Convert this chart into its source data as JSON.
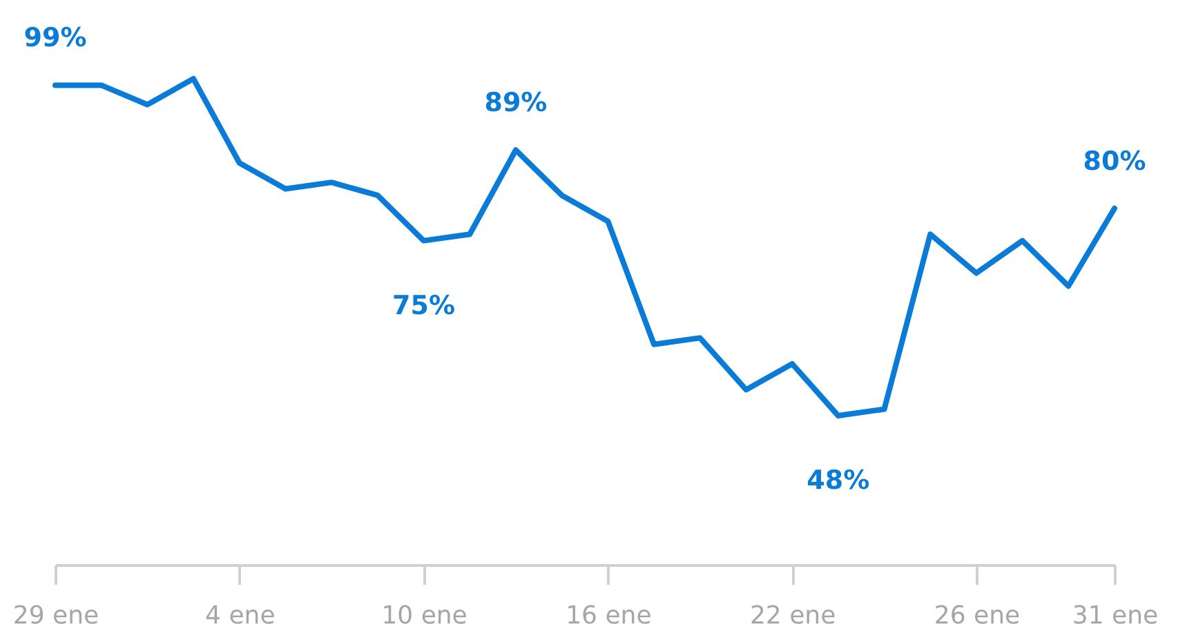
{
  "chart_data": {
    "type": "line",
    "categories": [
      "29 ene",
      null,
      null,
      null,
      "4 ene",
      null,
      null,
      null,
      "10 ene",
      null,
      null,
      null,
      "16 ene",
      null,
      null,
      null,
      "22 ene",
      null,
      null,
      null,
      "26 ene",
      null,
      null,
      "31 ene"
    ],
    "series": [
      {
        "color": "#0a7bd6",
        "values": [
          99,
          99,
          96,
          100,
          87,
          83,
          84,
          82,
          75,
          76,
          89,
          82,
          78,
          59,
          60,
          52,
          56,
          48,
          49,
          76,
          70,
          75,
          68,
          80
        ],
        "value_labels": [
          "99%",
          null,
          null,
          null,
          null,
          null,
          null,
          null,
          "75%",
          null,
          "89%",
          null,
          null,
          null,
          null,
          null,
          null,
          "48%",
          null,
          null,
          null,
          null,
          null,
          "80%"
        ]
      }
    ],
    "tick_labels": "x",
    "grid": false,
    "marker": "none",
    "line_style": "solid"
  }
}
